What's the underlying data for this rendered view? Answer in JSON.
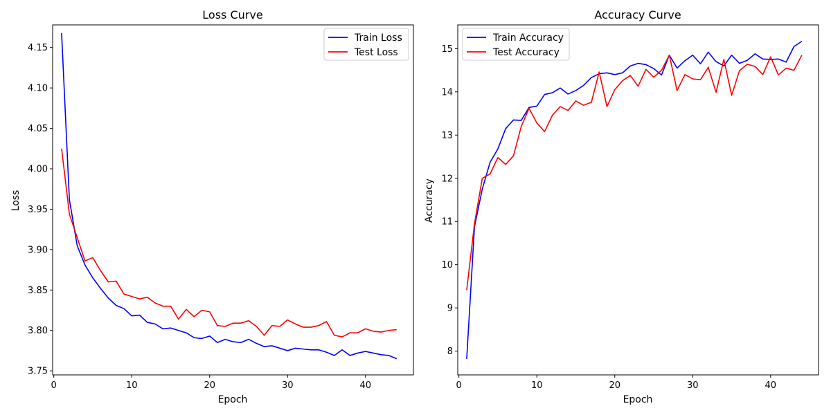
{
  "chart_data": [
    {
      "type": "line",
      "title": "Loss Curve",
      "xlabel": "Epoch",
      "ylabel": "Loss",
      "xlim": [
        -0.15,
        46.15
      ],
      "ylim": [
        3.745,
        4.178
      ],
      "xticks": [
        0,
        10,
        20,
        30,
        40
      ],
      "yticks": [
        3.75,
        3.8,
        3.85,
        3.9,
        3.95,
        4.0,
        4.05,
        4.1,
        4.15
      ],
      "ytick_labels": [
        "3.75",
        "3.80",
        "3.85",
        "3.90",
        "3.95",
        "4.00",
        "4.05",
        "4.10",
        "4.15"
      ],
      "legend_position": "top-right",
      "grid": false,
      "x": [
        1,
        2,
        3,
        4,
        5,
        6,
        7,
        8,
        9,
        10,
        11,
        12,
        13,
        14,
        15,
        16,
        17,
        18,
        19,
        20,
        21,
        22,
        23,
        24,
        25,
        26,
        27,
        28,
        29,
        30,
        31,
        32,
        33,
        34,
        35,
        36,
        37,
        38,
        39,
        40,
        41,
        42,
        43,
        44
      ],
      "series": [
        {
          "name": "Train Loss",
          "color": "#0000ff",
          "values": [
            4.168,
            3.962,
            3.905,
            3.881,
            3.865,
            3.852,
            3.84,
            3.831,
            3.827,
            3.818,
            3.819,
            3.81,
            3.808,
            3.802,
            3.803,
            3.8,
            3.797,
            3.791,
            3.79,
            3.793,
            3.785,
            3.789,
            3.786,
            3.785,
            3.789,
            3.784,
            3.78,
            3.781,
            3.778,
            3.775,
            3.778,
            3.777,
            3.776,
            3.776,
            3.773,
            3.769,
            3.776,
            3.769,
            3.772,
            3.774,
            3.772,
            3.77,
            3.769,
            3.765
          ]
        },
        {
          "name": "Test Loss",
          "color": "#ff0000",
          "values": [
            4.025,
            3.944,
            3.915,
            3.886,
            3.89,
            3.874,
            3.86,
            3.861,
            3.845,
            3.842,
            3.839,
            3.841,
            3.834,
            3.83,
            3.83,
            3.814,
            3.826,
            3.817,
            3.825,
            3.823,
            3.806,
            3.805,
            3.809,
            3.809,
            3.812,
            3.805,
            3.794,
            3.806,
            3.805,
            3.813,
            3.808,
            3.804,
            3.804,
            3.806,
            3.811,
            3.794,
            3.792,
            3.797,
            3.797,
            3.802,
            3.799,
            3.798,
            3.8,
            3.801
          ]
        }
      ]
    },
    {
      "type": "line",
      "title": "Accuracy Curve",
      "xlabel": "Epoch",
      "ylabel": "Accuracy",
      "xlim": [
        -0.15,
        46.15
      ],
      "ylim": [
        7.45,
        15.55
      ],
      "xticks": [
        0,
        10,
        20,
        30,
        40
      ],
      "yticks": [
        8,
        9,
        10,
        11,
        12,
        13,
        14,
        15
      ],
      "ytick_labels": [
        "8",
        "9",
        "10",
        "11",
        "12",
        "13",
        "14",
        "15"
      ],
      "legend_position": "top-left",
      "grid": false,
      "x": [
        1,
        2,
        3,
        4,
        5,
        6,
        7,
        8,
        9,
        10,
        11,
        12,
        13,
        14,
        15,
        16,
        17,
        18,
        19,
        20,
        21,
        22,
        23,
        24,
        25,
        26,
        27,
        28,
        29,
        30,
        31,
        32,
        33,
        34,
        35,
        36,
        37,
        38,
        39,
        40,
        41,
        42,
        43,
        44
      ],
      "series": [
        {
          "name": "Train Accuracy",
          "color": "#0000ff",
          "values": [
            7.82,
            10.88,
            11.75,
            12.37,
            12.68,
            13.15,
            13.35,
            13.34,
            13.64,
            13.67,
            13.94,
            13.98,
            14.09,
            13.95,
            14.03,
            14.15,
            14.33,
            14.42,
            14.44,
            14.4,
            14.44,
            14.6,
            14.66,
            14.63,
            14.54,
            14.39,
            14.85,
            14.55,
            14.72,
            14.85,
            14.65,
            14.92,
            14.7,
            14.6,
            14.85,
            14.66,
            14.73,
            14.88,
            14.76,
            14.75,
            14.76,
            14.69,
            15.05,
            15.17
          ]
        },
        {
          "name": "Test Accuracy",
          "color": "#ff0000",
          "values": [
            9.41,
            10.95,
            12.0,
            12.1,
            12.48,
            12.32,
            12.52,
            13.2,
            13.62,
            13.28,
            13.08,
            13.46,
            13.66,
            13.57,
            13.79,
            13.69,
            13.76,
            14.46,
            13.66,
            14.05,
            14.26,
            14.38,
            14.13,
            14.52,
            14.34,
            14.5,
            14.85,
            14.03,
            14.4,
            14.3,
            14.28,
            14.57,
            13.99,
            14.75,
            13.92,
            14.49,
            14.64,
            14.59,
            14.4,
            14.81,
            14.39,
            14.55,
            14.5,
            14.85
          ]
        }
      ]
    }
  ]
}
